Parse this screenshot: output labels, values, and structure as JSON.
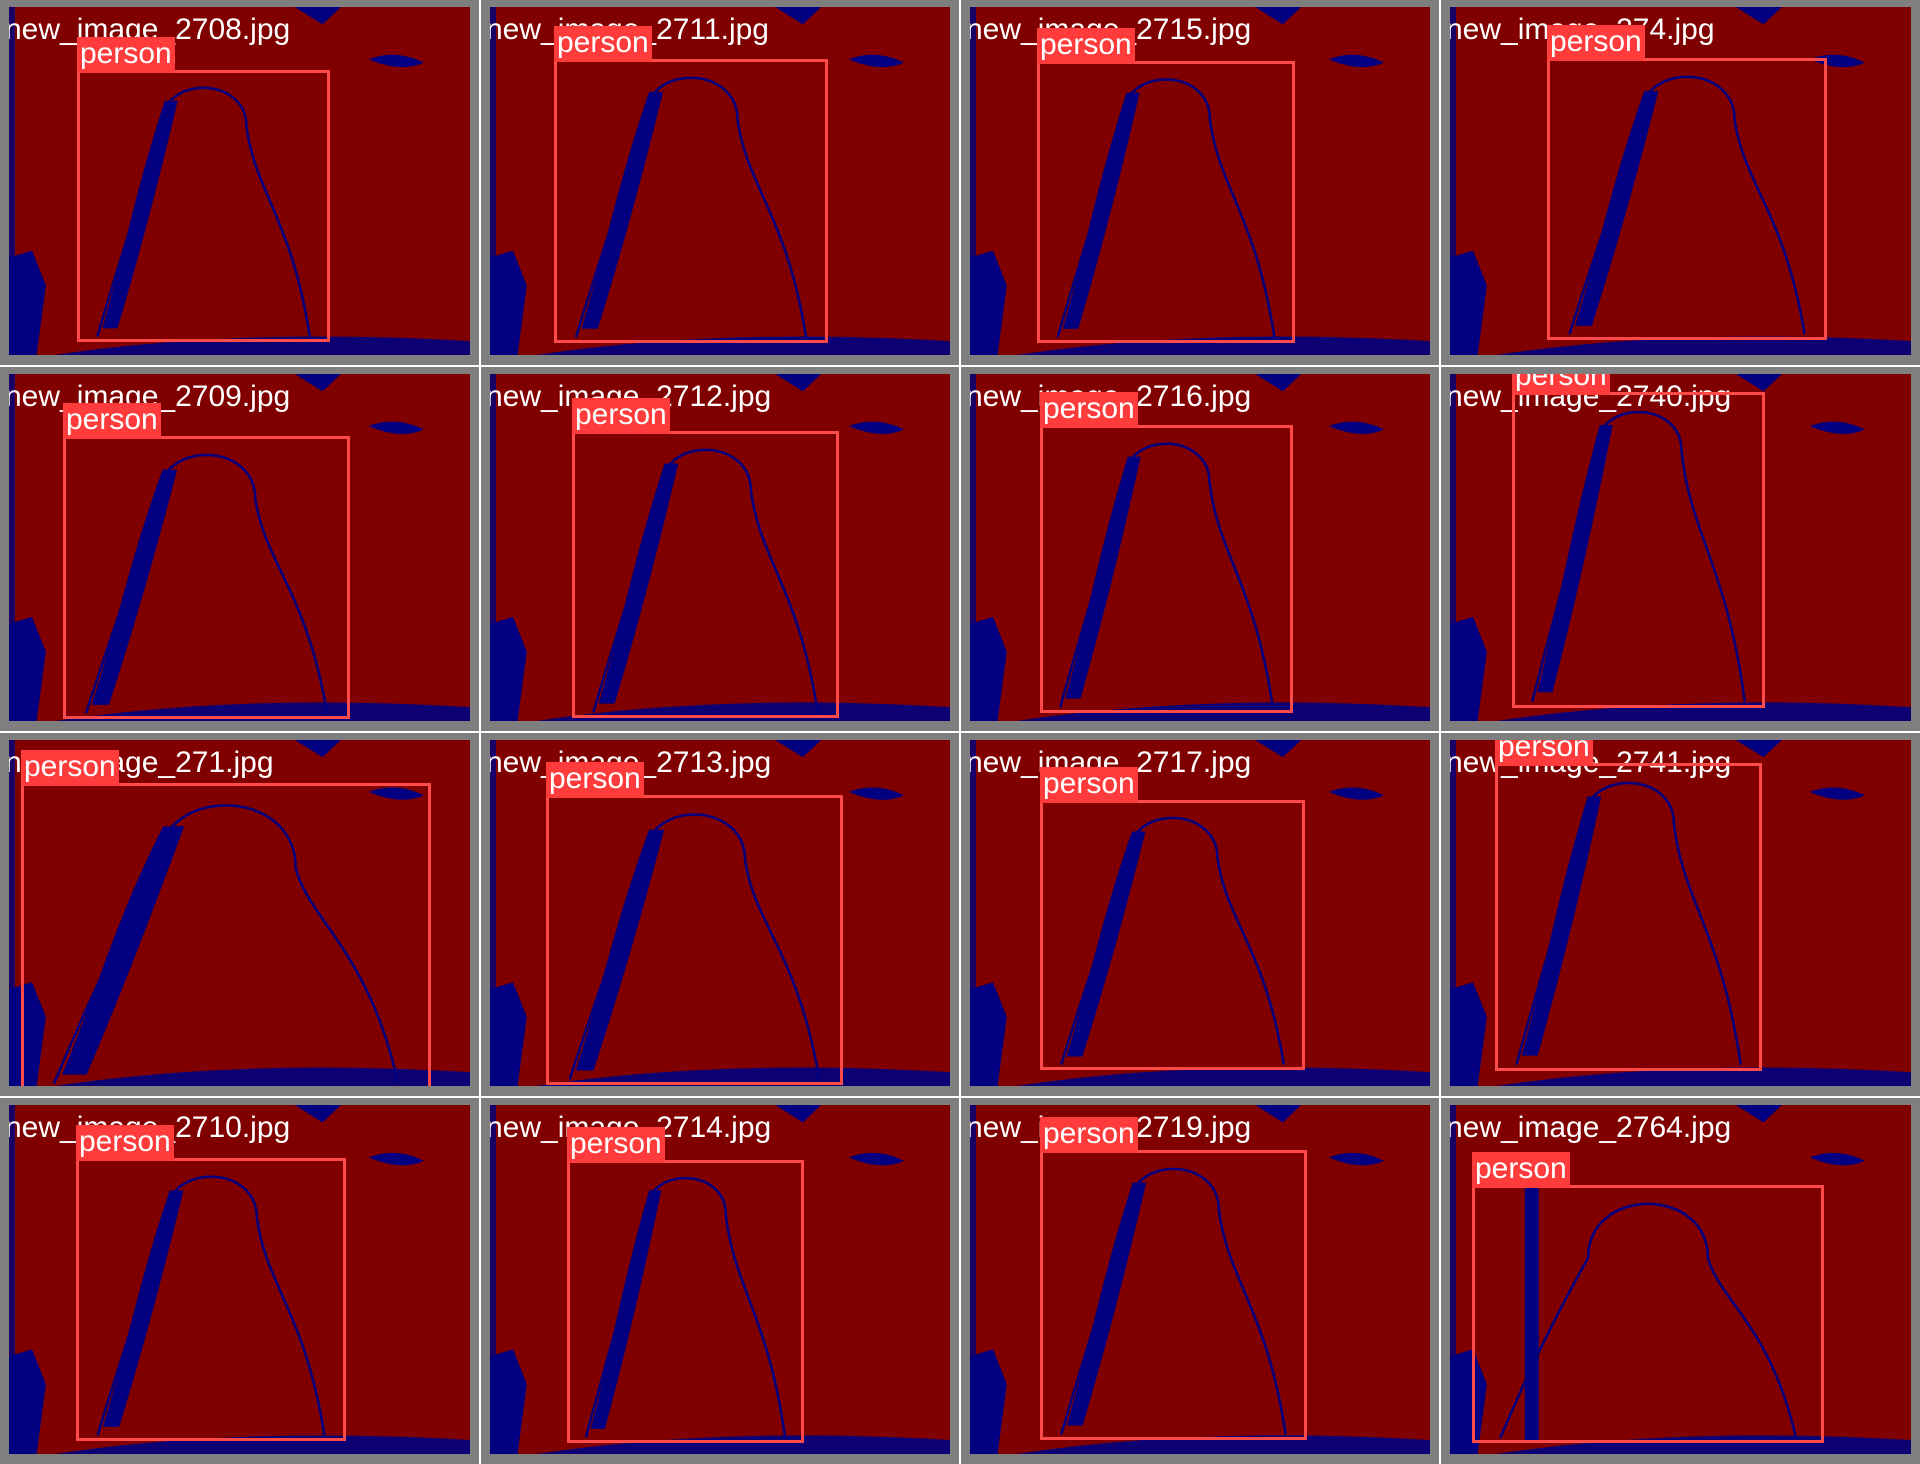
{
  "colors": {
    "tile_border": "#7f7f7f",
    "heat_background": "#800000",
    "heat_low": "#000080",
    "bbox_stroke": "#ff4a4a",
    "label_background": "#ff3b3b",
    "text": "#ffffff"
  },
  "tiles": [
    {
      "filename": "new_image_2708.jpg",
      "detections": [
        {
          "label": "person"
        }
      ]
    },
    {
      "filename": "new_image_2711.jpg",
      "detections": [
        {
          "label": "person"
        }
      ]
    },
    {
      "filename": "new_image_2715.jpg",
      "detections": [
        {
          "label": "person"
        }
      ]
    },
    {
      "filename": "new_image_274.jpg",
      "detections": [
        {
          "label": "person"
        }
      ]
    },
    {
      "filename": "new_image_2709.jpg",
      "detections": [
        {
          "label": "person"
        }
      ]
    },
    {
      "filename": "new_image_2712.jpg",
      "detections": [
        {
          "label": "person"
        }
      ]
    },
    {
      "filename": "new_image_2716.jpg",
      "detections": [
        {
          "label": "person"
        }
      ]
    },
    {
      "filename": "new_image_2740.jpg",
      "detections": [
        {
          "label": "person"
        }
      ]
    },
    {
      "filename": "new_image_271.jpg",
      "detections": [
        {
          "label": "person"
        }
      ]
    },
    {
      "filename": "new_image_2713.jpg",
      "detections": [
        {
          "label": "person"
        }
      ]
    },
    {
      "filename": "new_image_2717.jpg",
      "detections": [
        {
          "label": "person"
        }
      ]
    },
    {
      "filename": "new_image_2741.jpg",
      "detections": [
        {
          "label": "person"
        }
      ]
    },
    {
      "filename": "new_image_2710.jpg",
      "detections": [
        {
          "label": "person"
        }
      ]
    },
    {
      "filename": "new_image_2714.jpg",
      "detections": [
        {
          "label": "person"
        }
      ]
    },
    {
      "filename": "new_image_2719.jpg",
      "detections": [
        {
          "label": "person"
        }
      ]
    },
    {
      "filename": "new_image_2764.jpg",
      "detections": [
        {
          "label": "person"
        }
      ]
    }
  ]
}
